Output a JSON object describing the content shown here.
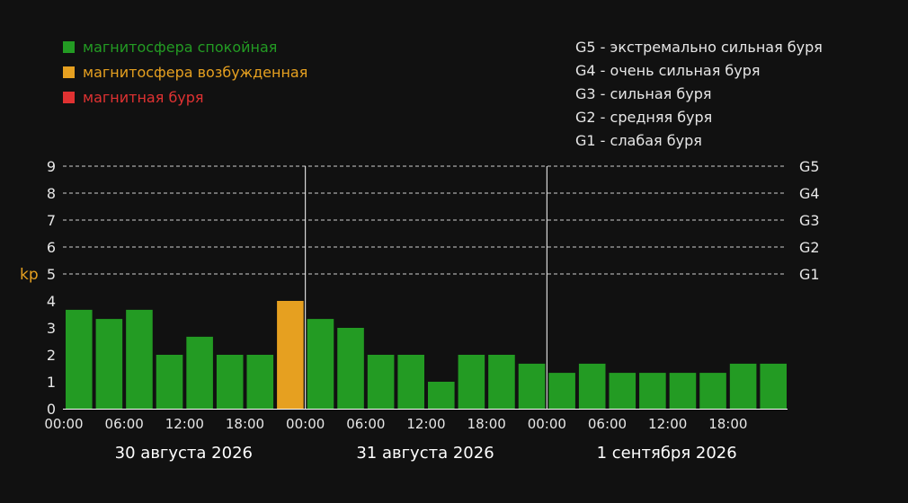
{
  "colors": {
    "background": "#111111",
    "quiet": "#239b23",
    "excited": "#e6a020",
    "storm": "#e03232",
    "text": "#e6e6e6",
    "kp_label": "#e6a020"
  },
  "legend": {
    "items": [
      {
        "label": "магнитосфера спокойная",
        "color": "#239b23"
      },
      {
        "label": "магнитосфера возбужденная",
        "color": "#e6a020"
      },
      {
        "label": "магнитная буря",
        "color": "#e03232"
      }
    ],
    "storm_levels": [
      {
        "code": "G5",
        "text": "экстремально сильная буря"
      },
      {
        "code": "G4",
        "text": "очень сильная буря"
      },
      {
        "code": "G3",
        "text": "сильная буря"
      },
      {
        "code": "G2",
        "text": "средняя буря"
      },
      {
        "code": "G1",
        "text": "слабая буря"
      }
    ]
  },
  "chart_data": {
    "type": "bar",
    "ylabel": "kp",
    "ylim": [
      0,
      9
    ],
    "yticks": [
      0,
      1,
      2,
      3,
      4,
      5,
      6,
      7,
      8,
      9
    ],
    "right_labels": [
      {
        "value": 5,
        "label": "G1"
      },
      {
        "value": 6,
        "label": "G2"
      },
      {
        "value": 7,
        "label": "G3"
      },
      {
        "value": 8,
        "label": "G4"
      },
      {
        "value": 9,
        "label": "G5"
      }
    ],
    "time_ticks": [
      "00:00",
      "06:00",
      "12:00",
      "18:00",
      "00:00",
      "06:00",
      "12:00",
      "18:00",
      "00:00",
      "06:00",
      "12:00",
      "18:00"
    ],
    "days": [
      "30 августа 2026",
      "31 августа 2026",
      "1 сентября 2026"
    ],
    "values": [
      3.67,
      3.33,
      3.67,
      2.0,
      2.67,
      2.0,
      2.0,
      4.0,
      3.33,
      3.0,
      2.0,
      2.0,
      1.0,
      2.0,
      2.0,
      1.67,
      1.33,
      1.67,
      1.33,
      1.33,
      1.33,
      1.33,
      1.67,
      1.67
    ],
    "status": [
      "quiet",
      "quiet",
      "quiet",
      "quiet",
      "quiet",
      "quiet",
      "quiet",
      "excited",
      "quiet",
      "quiet",
      "quiet",
      "quiet",
      "quiet",
      "quiet",
      "quiet",
      "quiet",
      "quiet",
      "quiet",
      "quiet",
      "quiet",
      "quiet",
      "quiet",
      "quiet",
      "quiet"
    ],
    "grid": "dashed at kp 5 to 9"
  }
}
